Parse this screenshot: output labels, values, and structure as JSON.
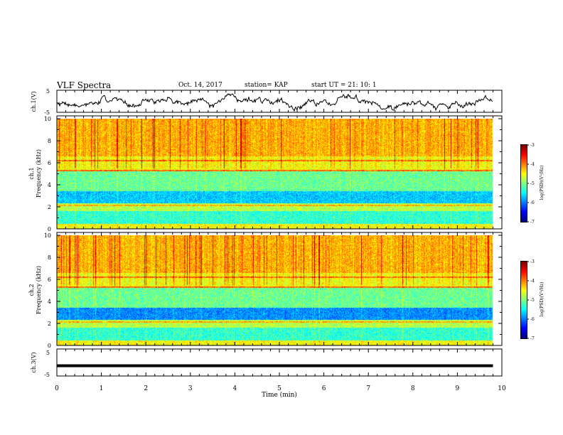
{
  "header": {
    "title": "VLF Spectra",
    "date": "Oct. 14, 2017",
    "station": "station= KAP",
    "start": "start  UT =   21: 10: 1"
  },
  "chart_data": [
    {
      "type": "line",
      "name": "ch1-waveform",
      "ylabel": "ch.1(V)",
      "yticks": [
        "5",
        "-5"
      ],
      "ylim": [
        -5,
        5
      ],
      "xlim": [
        0,
        10
      ]
    },
    {
      "type": "heatmap",
      "name": "ch1-spectrogram",
      "ylabel_top": "ch.1",
      "ylabel": "Frequency  (kHz)",
      "yticks": [
        "0",
        "2",
        "4",
        "6",
        "8",
        "10"
      ],
      "ylim": [
        0,
        10
      ],
      "xlim": [
        0,
        10
      ],
      "data_xmax": 9.8,
      "colorbar": {
        "label": "log(PSD)(V²/Hz)",
        "ticks": [
          "-3",
          "-4",
          "-5",
          "-6",
          "-7"
        ],
        "range": [
          -7,
          -3
        ]
      }
    },
    {
      "type": "heatmap",
      "name": "ch2-spectrogram",
      "ylabel_top": "ch.2",
      "ylabel": "Frequency  (kHz)",
      "yticks": [
        "0",
        "2",
        "4",
        "6",
        "8",
        "10"
      ],
      "ylim": [
        0,
        10
      ],
      "xlim": [
        0,
        10
      ],
      "data_xmax": 9.8,
      "colorbar": {
        "label": "log(PSD)(V²/Hz)",
        "ticks": [
          "-3",
          "-4",
          "-5",
          "-6",
          "-7"
        ],
        "range": [
          -7,
          -3
        ]
      }
    },
    {
      "type": "line",
      "name": "ch3-waveform",
      "ylabel": "ch.3(V)",
      "yticks": [
        "5",
        "-5"
      ],
      "ylim": [
        -5,
        5
      ],
      "xlim": [
        0,
        10
      ],
      "constant_value": -1.2
    }
  ],
  "xaxis": {
    "label": "Time  (min)",
    "ticks": [
      "0",
      "1",
      "2",
      "3",
      "4",
      "5",
      "6",
      "7",
      "8",
      "9",
      "10"
    ]
  }
}
